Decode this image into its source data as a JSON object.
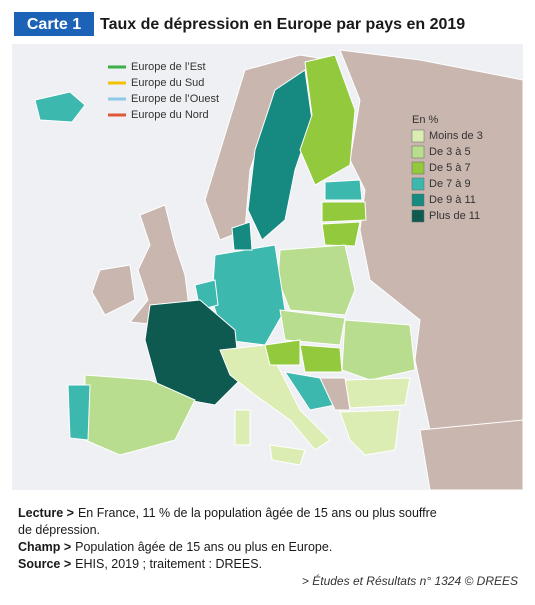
{
  "header": {
    "badge": "Carte 1",
    "title": "Taux de dépression en Europe par pays en 2019"
  },
  "regions_legend": [
    {
      "label": "Europe de l’Est",
      "color": "#3fae49"
    },
    {
      "label": "Europe du Sud",
      "color": "#f2c200"
    },
    {
      "label": "Europe de l’Ouest",
      "color": "#8fc9e8"
    },
    {
      "label": "Europe du Nord",
      "color": "#e0583a"
    }
  ],
  "scale_legend": {
    "title": "En %",
    "items": [
      {
        "label": "Moins de 3",
        "color": "#dcedb4"
      },
      {
        "label": "De 3 à 5",
        "color": "#b8dd8e"
      },
      {
        "label": "De 5 à 7",
        "color": "#92c93d"
      },
      {
        "label": "De 7 à 9",
        "color": "#3db8ae"
      },
      {
        "label": "De 9 à 11",
        "color": "#168a80"
      },
      {
        "label": "Plus de 11",
        "color": "#0e5a51"
      }
    ]
  },
  "notes": [
    {
      "key": "Lecture >",
      "text": "En France, 11 % de la population âgée de 15 ans ou plus souffre"
    },
    {
      "key": "",
      "text": "de dépression."
    },
    {
      "key": "Champ >",
      "text": "Population âgée de 15 ans ou plus en Europe."
    },
    {
      "key": "Source >",
      "text": "EHIS, 2019 ; traitement : DREES."
    }
  ],
  "footer": "> Études et Résultats n° 1324 © DREES"
}
